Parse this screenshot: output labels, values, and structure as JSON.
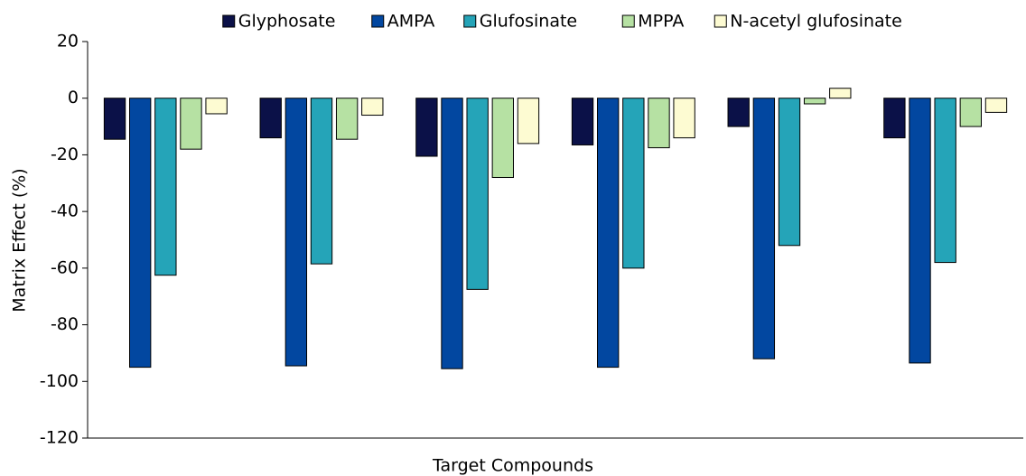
{
  "chart_data": {
    "type": "bar",
    "xlabel": "Target Compounds",
    "ylabel": "Matrix Effect (%)",
    "categories": [
      null,
      null,
      null,
      null,
      null,
      null
    ],
    "series": [
      {
        "name": "Glyphosate",
        "color": "#0b1148",
        "values": [
          -14.5,
          -14,
          -20.5,
          -16.5,
          -10,
          -14
        ]
      },
      {
        "name": "AMPA",
        "color": "#0247a0",
        "values": [
          -95,
          -94.5,
          -95.5,
          -95,
          -92,
          -93.5
        ]
      },
      {
        "name": "Glufosinate",
        "color": "#25a4b8",
        "values": [
          -62.5,
          -58.5,
          -67.5,
          -60,
          -52,
          -58
        ]
      },
      {
        "name": "MPPA",
        "color": "#b6e1a3",
        "values": [
          -18,
          -14.5,
          -28,
          -17.5,
          -2,
          -10
        ]
      },
      {
        "name": "N-acetyl glufosinate",
        "color": "#fdfbd2",
        "values": [
          -5.5,
          -6,
          -16,
          -14,
          3.5,
          -5
        ]
      }
    ],
    "ylim": [
      -120,
      20
    ],
    "yticks": [
      -120,
      -100,
      -80,
      -60,
      -40,
      -20,
      0,
      20
    ],
    "legend": "top"
  }
}
